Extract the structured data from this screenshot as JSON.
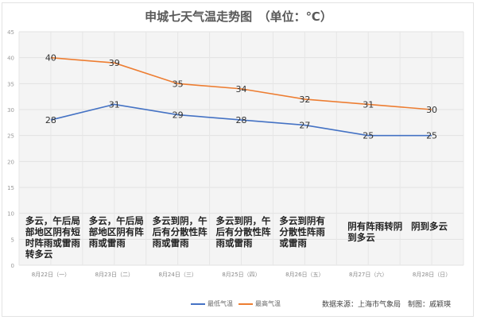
{
  "chart_data": {
    "type": "line",
    "title": "申城七天气温走势图　（单位：℃）",
    "categories": [
      "8月22日（一）",
      "8月23日（二）",
      "8月24日（三）",
      "8月25日（四）",
      "8月26日（五）",
      "8月27日（六）",
      "8月28日（日）"
    ],
    "descriptions": [
      "多云，午后局部地区阴有短时阵雨或雷雨转多云",
      "多云，午后局部地区阴有阵雨或雷雨",
      "多云到阴，午后有分散性阵雨或雷雨",
      "多云到阴，午后有分散性阵雨或雷雨",
      "多云到阴有分散性阵雨或雷雨",
      "阴有阵雨转阴到多云",
      "阴到多云"
    ],
    "series": [
      {
        "name": "最低气温",
        "values": [
          28,
          31,
          29,
          28,
          27,
          25,
          25
        ],
        "color": "#4472c4"
      },
      {
        "name": "最高气温",
        "values": [
          40,
          39,
          35,
          34,
          32,
          31,
          30
        ],
        "color": "#ed7d31"
      }
    ],
    "ylim": [
      0,
      45
    ],
    "yticks": [
      0,
      5,
      10,
      15,
      20,
      25,
      30,
      35,
      40,
      45
    ],
    "grid": true,
    "legend": "bottom"
  },
  "source": "数据来源：上海市气象局　制图：戚颖瑛"
}
